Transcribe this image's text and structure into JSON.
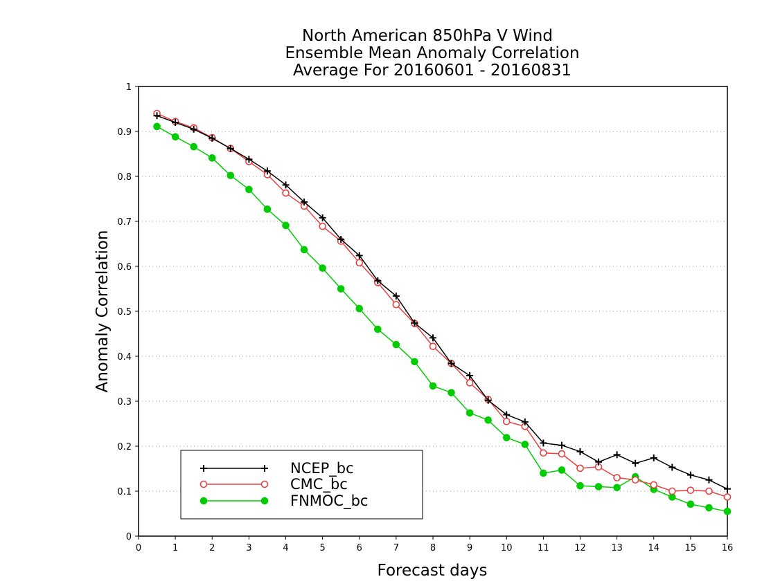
{
  "chart_data": {
    "type": "line",
    "title": [
      "North American 850hPa V Wind",
      "Ensemble Mean Anomaly Correlation",
      "Average For 20160601 - 20160831"
    ],
    "xlabel": "Forecast days",
    "ylabel": "Anomaly Correlation",
    "xlim": [
      0,
      16
    ],
    "ylim": [
      0,
      1
    ],
    "xticks": [
      "0",
      "1",
      "2",
      "3",
      "4",
      "5",
      "6",
      "7",
      "8",
      "9",
      "10",
      "11",
      "12",
      "13",
      "14",
      "15",
      "16"
    ],
    "yticks": [
      "0",
      "0.1",
      "0.2",
      "0.3",
      "0.4",
      "0.5",
      "0.6",
      "0.7",
      "0.8",
      "0.9",
      "1"
    ],
    "grid": "horizontal dotted",
    "legend_position": "bottom-left",
    "x": [
      0.5,
      1,
      1.5,
      2,
      2.5,
      3,
      3.5,
      4,
      4.5,
      5,
      5.5,
      6,
      6.5,
      7,
      7.5,
      8,
      8.5,
      9,
      9.5,
      10,
      10.5,
      11,
      11.5,
      12,
      12.5,
      13,
      13.5,
      14,
      14.5,
      15,
      15.5,
      16
    ],
    "series": [
      {
        "name": "NCEP_bc",
        "color": "#000000",
        "marker": "plus",
        "values": [
          0.935,
          0.92,
          0.905,
          0.885,
          0.862,
          0.838,
          0.812,
          0.781,
          0.743,
          0.708,
          0.66,
          0.624,
          0.568,
          0.534,
          0.474,
          0.441,
          0.384,
          0.357,
          0.302,
          0.27,
          0.254,
          0.207,
          0.202,
          0.188,
          0.165,
          0.181,
          0.162,
          0.174,
          0.153,
          0.136,
          0.125,
          0.105
        ]
      },
      {
        "name": "CMC_bc",
        "color": "#e84040",
        "marker": "open-circle",
        "values": [
          0.94,
          0.922,
          0.908,
          0.886,
          0.862,
          0.833,
          0.804,
          0.763,
          0.734,
          0.689,
          0.656,
          0.608,
          0.564,
          0.515,
          0.473,
          0.422,
          0.384,
          0.341,
          0.304,
          0.255,
          0.244,
          0.185,
          0.183,
          0.151,
          0.154,
          0.13,
          0.125,
          0.114,
          0.1,
          0.102,
          0.1,
          0.087
        ]
      },
      {
        "name": "FNMOC_bc",
        "color": "#00cc00",
        "marker": "filled-circle",
        "values": [
          0.911,
          0.888,
          0.866,
          0.841,
          0.802,
          0.771,
          0.727,
          0.691,
          0.637,
          0.596,
          0.55,
          0.506,
          0.46,
          0.426,
          0.388,
          0.334,
          0.319,
          0.274,
          0.258,
          0.219,
          0.204,
          0.14,
          0.147,
          0.112,
          0.11,
          0.108,
          0.132,
          0.104,
          0.087,
          0.071,
          0.063,
          0.055
        ]
      }
    ]
  }
}
